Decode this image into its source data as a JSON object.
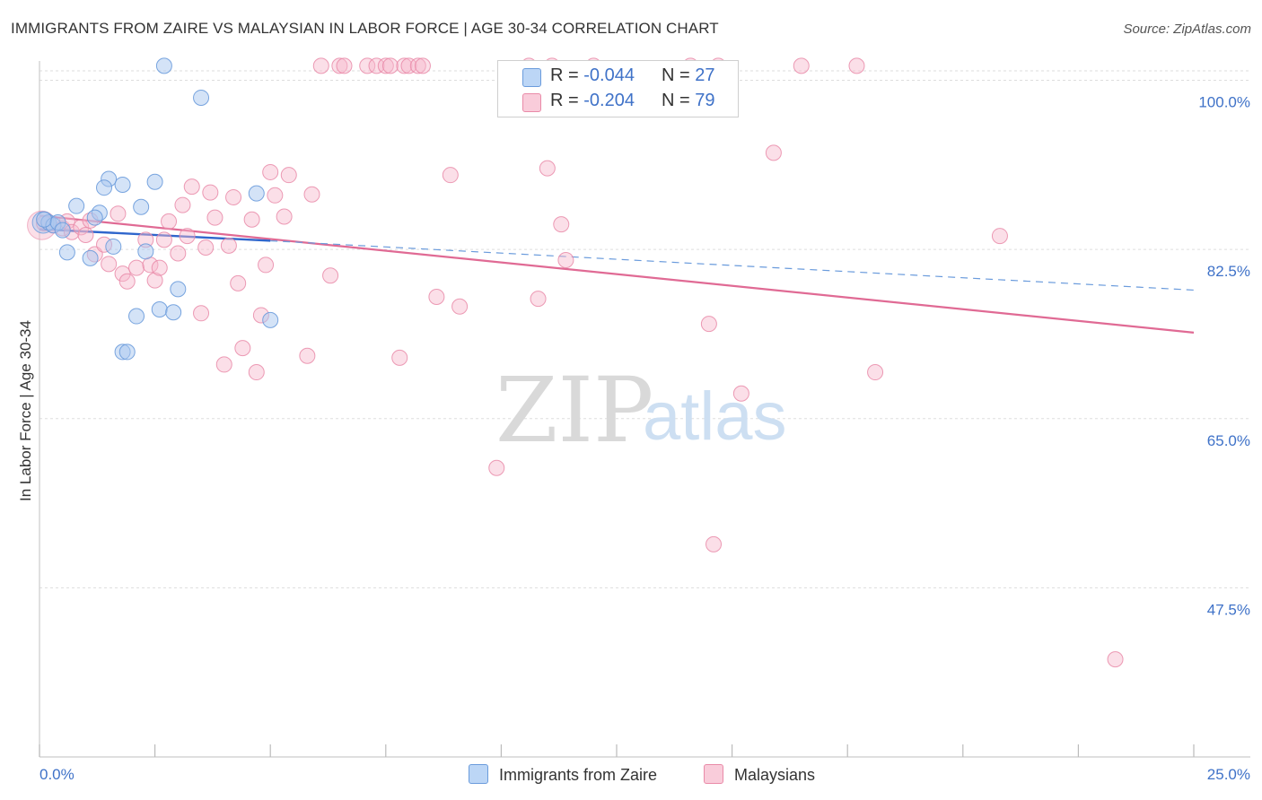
{
  "title": "IMMIGRANTS FROM ZAIRE VS MALAYSIAN IN LABOR FORCE | AGE 30-34 CORRELATION CHART",
  "source": "Source: ZipAtlas.com",
  "watermark": {
    "zip": "ZIP",
    "atlas": "atlas"
  },
  "legend": {
    "series1": {
      "r_label": "R = ",
      "r_value": "-0.044",
      "n_label": "N = ",
      "n_value": "27"
    },
    "series2": {
      "r_label": "R = ",
      "r_value": "-0.204",
      "n_label": "N = ",
      "n_value": "79"
    }
  },
  "colors": {
    "blue_fill": "#a9c8f0",
    "blue_stroke": "#6a9bdc",
    "blue_line": "#2f66cc",
    "pink_fill": "#f7b8cc",
    "pink_stroke": "#e98aa8",
    "pink_line": "#e06a94",
    "axis_text": "#3f72c8",
    "grid": "#dddddd"
  },
  "chart_data": {
    "type": "scatter",
    "title": "IMMIGRANTS FROM ZAIRE VS MALAYSIAN IN LABOR FORCE | AGE 30-34 CORRELATION CHART",
    "xlabel": "",
    "ylabel": "In Labor Force | Age 30-34",
    "xlim": [
      0,
      25
    ],
    "ylim": [
      30,
      102
    ],
    "x_tick_labels": [
      "0.0%",
      "25.0%"
    ],
    "y_ticks": [
      47.5,
      65.0,
      82.5,
      100.0
    ],
    "y_tick_labels": [
      "47.5%",
      "65.0%",
      "82.5%",
      "100.0%"
    ],
    "grid": true,
    "series": [
      {
        "name": "Immigrants from Zaire",
        "r": -0.044,
        "n": 27,
        "trend": {
          "x": [
            0,
            5.0
          ],
          "y": [
            84.6,
            83.4
          ]
        },
        "trend_extension": {
          "x": [
            5.0,
            25
          ],
          "y": [
            83.4,
            78.3
          ]
        },
        "points": [
          [
            2.7,
            101.5
          ],
          [
            3.5,
            98.2
          ],
          [
            1.5,
            89.8
          ],
          [
            1.4,
            88.9
          ],
          [
            1.8,
            89.2
          ],
          [
            2.5,
            89.5
          ],
          [
            4.7,
            88.3
          ],
          [
            0.8,
            87.0
          ],
          [
            2.2,
            86.9
          ],
          [
            0.2,
            85.3
          ],
          [
            0.3,
            85.0
          ],
          [
            0.1,
            85.6
          ],
          [
            0.4,
            85.3
          ],
          [
            0.5,
            84.5
          ],
          [
            1.3,
            86.3
          ],
          [
            1.2,
            85.8
          ],
          [
            0.6,
            82.2
          ],
          [
            1.1,
            81.6
          ],
          [
            2.3,
            82.3
          ],
          [
            1.6,
            82.8
          ],
          [
            3.0,
            78.4
          ],
          [
            2.6,
            76.3
          ],
          [
            2.9,
            76.0
          ],
          [
            2.1,
            75.6
          ],
          [
            5.0,
            75.2
          ],
          [
            1.8,
            71.9
          ],
          [
            1.9,
            71.9
          ]
        ]
      },
      {
        "name": "Malaysians",
        "r": -0.204,
        "n": 79,
        "trend": {
          "x": [
            0,
            25
          ],
          "y": [
            86.0,
            73.9
          ]
        },
        "points": [
          [
            0.1,
            85.2
          ],
          [
            0.3,
            85.0
          ],
          [
            0.5,
            84.7
          ],
          [
            0.6,
            85.4
          ],
          [
            0.7,
            84.3
          ],
          [
            0.9,
            84.8
          ],
          [
            1.0,
            84.0
          ],
          [
            1.1,
            85.5
          ],
          [
            1.2,
            82.0
          ],
          [
            1.4,
            83.0
          ],
          [
            1.5,
            81.0
          ],
          [
            1.7,
            86.2
          ],
          [
            1.8,
            80.0
          ],
          [
            1.9,
            79.2
          ],
          [
            2.1,
            80.6
          ],
          [
            2.3,
            83.5
          ],
          [
            2.4,
            80.9
          ],
          [
            2.5,
            79.3
          ],
          [
            2.6,
            80.6
          ],
          [
            2.7,
            83.5
          ],
          [
            2.8,
            85.4
          ],
          [
            3.0,
            82.1
          ],
          [
            3.1,
            87.1
          ],
          [
            3.2,
            83.9
          ],
          [
            3.3,
            89.0
          ],
          [
            3.5,
            75.9
          ],
          [
            3.6,
            82.7
          ],
          [
            3.7,
            88.4
          ],
          [
            3.8,
            85.8
          ],
          [
            4.0,
            70.6
          ],
          [
            4.1,
            82.9
          ],
          [
            4.2,
            87.9
          ],
          [
            4.3,
            79.0
          ],
          [
            4.4,
            72.3
          ],
          [
            4.6,
            85.6
          ],
          [
            4.7,
            69.8
          ],
          [
            4.8,
            75.7
          ],
          [
            4.9,
            80.9
          ],
          [
            5.0,
            90.5
          ],
          [
            5.1,
            88.1
          ],
          [
            5.3,
            85.9
          ],
          [
            5.4,
            90.2
          ],
          [
            5.8,
            71.5
          ],
          [
            5.9,
            88.2
          ],
          [
            6.1,
            101.5
          ],
          [
            6.3,
            79.8
          ],
          [
            6.5,
            101.5
          ],
          [
            6.6,
            101.5
          ],
          [
            7.1,
            101.5
          ],
          [
            7.3,
            101.5
          ],
          [
            7.5,
            101.5
          ],
          [
            7.6,
            101.5
          ],
          [
            7.8,
            71.3
          ],
          [
            7.9,
            101.5
          ],
          [
            8.0,
            101.5
          ],
          [
            8.2,
            101.5
          ],
          [
            8.3,
            101.5
          ],
          [
            8.6,
            77.6
          ],
          [
            8.9,
            90.2
          ],
          [
            9.1,
            76.6
          ],
          [
            9.9,
            59.9
          ],
          [
            10.6,
            101.5
          ],
          [
            10.8,
            77.4
          ],
          [
            11.0,
            90.9
          ],
          [
            11.1,
            101.5
          ],
          [
            11.3,
            85.1
          ],
          [
            11.4,
            81.4
          ],
          [
            12.0,
            101.5
          ],
          [
            14.1,
            101.5
          ],
          [
            14.5,
            74.8
          ],
          [
            14.6,
            52.0
          ],
          [
            14.7,
            101.5
          ],
          [
            15.2,
            67.6
          ],
          [
            15.9,
            92.5
          ],
          [
            16.5,
            101.5
          ],
          [
            17.7,
            101.5
          ],
          [
            18.1,
            69.8
          ],
          [
            20.8,
            83.9
          ],
          [
            23.3,
            40.1
          ]
        ]
      }
    ]
  },
  "bottom_legend": {
    "item1": "Immigrants from Zaire",
    "item2": "Malaysians"
  }
}
